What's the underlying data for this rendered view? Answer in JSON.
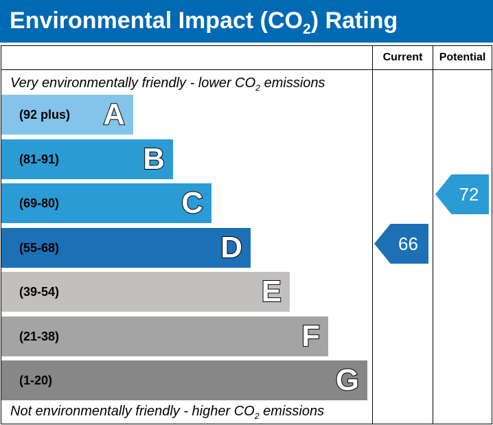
{
  "title": {
    "prefix": "Environmental Impact (CO",
    "subscript": "2",
    "suffix": ") Rating"
  },
  "columns": {
    "current": "Current",
    "potential": "Potential"
  },
  "notes": {
    "top": {
      "prefix": "Very environmentally friendly - lower CO",
      "subscript": "2",
      "suffix": " emissions"
    },
    "bottom": {
      "prefix": "Not environmentally friendly - higher CO",
      "subscript": "2",
      "suffix": " emissions"
    }
  },
  "colors": {
    "title_bar": "#0069b4",
    "bands": [
      "#85c4ea",
      "#2b9bd6",
      "#2b9bd6",
      "#1c70b6",
      "#c1c0bf",
      "#a4a4a4",
      "#878787"
    ],
    "current_arrow": "#1c70b6",
    "potential_arrow": "#2b9bd6"
  },
  "chart_data": {
    "type": "bar",
    "title": "Environmental Impact (CO2) Rating",
    "categories": [
      "A",
      "B",
      "C",
      "D",
      "E",
      "F",
      "G"
    ],
    "bands": [
      {
        "letter": "A",
        "range": "(92 plus)",
        "min": 92,
        "max": null
      },
      {
        "letter": "B",
        "range": "(81-91)",
        "min": 81,
        "max": 91
      },
      {
        "letter": "C",
        "range": "(69-80)",
        "min": 69,
        "max": 80
      },
      {
        "letter": "D",
        "range": "(55-68)",
        "min": 55,
        "max": 68
      },
      {
        "letter": "E",
        "range": "(39-54)",
        "min": 39,
        "max": 54
      },
      {
        "letter": "F",
        "range": "(21-38)",
        "min": 21,
        "max": 38
      },
      {
        "letter": "G",
        "range": "(1-20)",
        "min": 1,
        "max": 20
      }
    ],
    "series": [
      {
        "name": "Current",
        "value": 66,
        "band": "D"
      },
      {
        "name": "Potential",
        "value": 72,
        "band": "C"
      }
    ]
  }
}
